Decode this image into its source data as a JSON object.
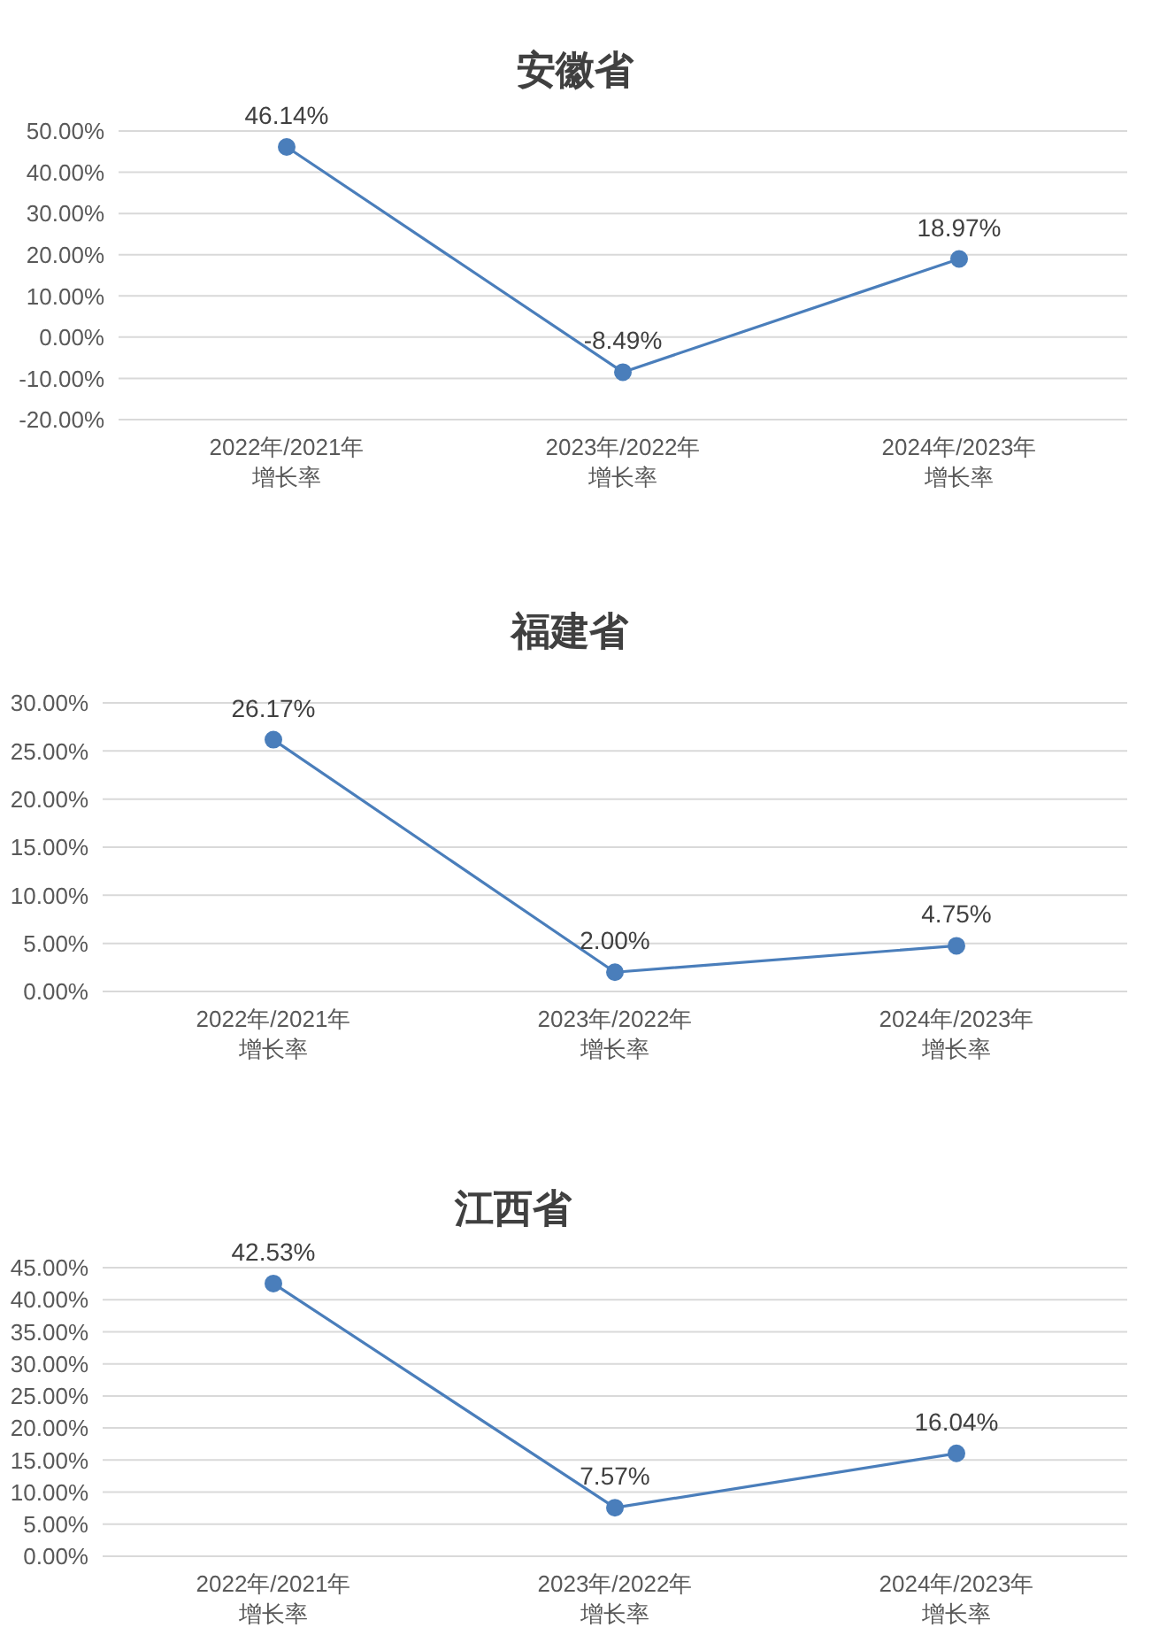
{
  "chart_data": [
    {
      "type": "line",
      "title": "安徽省",
      "categories": [
        "2022年/2021年增长率",
        "2023年/2022年增长率",
        "2024年/2023年增长率"
      ],
      "series": [
        {
          "color": "#4a7ebb",
          "values": [
            46.14,
            -8.49,
            18.97
          ],
          "value_labels": [
            "46.14%",
            "-8.49%",
            "18.97%"
          ]
        }
      ],
      "ylim": [
        -20,
        50
      ],
      "yticks": [
        {
          "value": -20,
          "label": "-20.00%"
        },
        {
          "value": -10,
          "label": "-10.00%"
        },
        {
          "value": 0,
          "label": "0.00%"
        },
        {
          "value": 10,
          "label": "10.00%"
        },
        {
          "value": 20,
          "label": "20.00%"
        },
        {
          "value": 30,
          "label": "30.00%"
        },
        {
          "value": 40,
          "label": "40.00%"
        },
        {
          "value": 50,
          "label": "50.00%"
        }
      ],
      "grid": "y",
      "marker": "circle",
      "line_style": "solid"
    },
    {
      "type": "line",
      "title": "福建省",
      "categories": [
        "2022年/2021年增长率",
        "2023年/2022年增长率",
        "2024年/2023年增长率"
      ],
      "series": [
        {
          "color": "#4a7ebb",
          "values": [
            26.17,
            2.0,
            4.75
          ],
          "value_labels": [
            "26.17%",
            "2.00%",
            "4.75%"
          ]
        }
      ],
      "ylim": [
        0,
        30
      ],
      "yticks": [
        {
          "value": 0,
          "label": "0.00%"
        },
        {
          "value": 5,
          "label": "5.00%"
        },
        {
          "value": 10,
          "label": "10.00%"
        },
        {
          "value": 15,
          "label": "15.00%"
        },
        {
          "value": 20,
          "label": "20.00%"
        },
        {
          "value": 25,
          "label": "25.00%"
        },
        {
          "value": 30,
          "label": "30.00%"
        }
      ],
      "grid": "y",
      "marker": "circle",
      "line_style": "solid"
    },
    {
      "type": "line",
      "title": "江西省",
      "categories": [
        "2022年/2021年增长率",
        "2023年/2022年增长率",
        "2024年/2023年增长率"
      ],
      "series": [
        {
          "color": "#4a7ebb",
          "values": [
            42.53,
            7.57,
            16.04
          ],
          "value_labels": [
            "42.53%",
            "7.57%",
            "16.04%"
          ]
        }
      ],
      "ylim": [
        0,
        45
      ],
      "yticks": [
        {
          "value": 0,
          "label": "0.00%"
        },
        {
          "value": 5,
          "label": "5.00%"
        },
        {
          "value": 10,
          "label": "10.00%"
        },
        {
          "value": 15,
          "label": "15.00%"
        },
        {
          "value": 20,
          "label": "20.00%"
        },
        {
          "value": 25,
          "label": "25.00%"
        },
        {
          "value": 30,
          "label": "30.00%"
        },
        {
          "value": 35,
          "label": "35.00%"
        },
        {
          "value": 40,
          "label": "40.00%"
        },
        {
          "value": 45,
          "label": "45.00%"
        }
      ],
      "grid": "y",
      "marker": "circle",
      "line_style": "solid"
    }
  ]
}
